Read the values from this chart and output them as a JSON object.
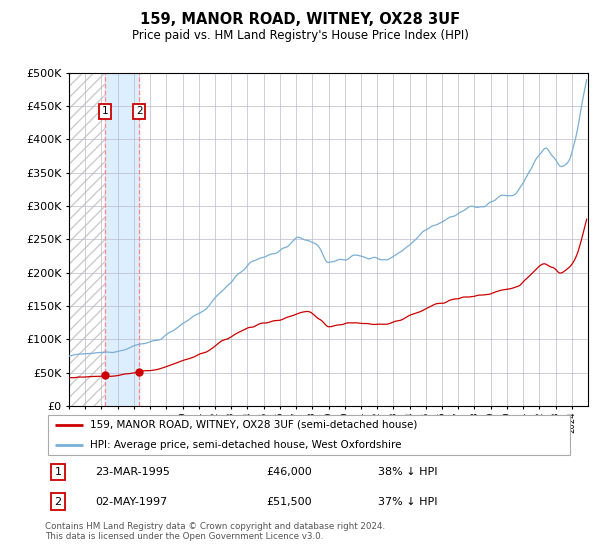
{
  "title": "159, MANOR ROAD, WITNEY, OX28 3UF",
  "subtitle": "Price paid vs. HM Land Registry's House Price Index (HPI)",
  "legend_line1": "159, MANOR ROAD, WITNEY, OX28 3UF (semi-detached house)",
  "legend_line2": "HPI: Average price, semi-detached house, West Oxfordshire",
  "transaction1_date": "23-MAR-1995",
  "transaction1_price": "£46,000",
  "transaction1_hpi": "38% ↓ HPI",
  "transaction2_date": "02-MAY-1997",
  "transaction2_price": "£51,500",
  "transaction2_hpi": "37% ↓ HPI",
  "footer": "Contains HM Land Registry data © Crown copyright and database right 2024.\nThis data is licensed under the Open Government Licence v3.0.",
  "hpi_color": "#7bafd4",
  "price_color": "#cc0000",
  "marker_color": "#cc0000",
  "vline_color": "#ff8888",
  "shade_color": "#ddeeff",
  "grid_color": "#bbbbcc",
  "ylim_min": 0,
  "ylim_max": 500000,
  "ytick_step": 50000,
  "xstart_year": 1993,
  "xend_year": 2024,
  "transaction1_year": 1995.22,
  "transaction2_year": 1997.33,
  "transaction1_price_val": 46000,
  "transaction2_price_val": 51500
}
